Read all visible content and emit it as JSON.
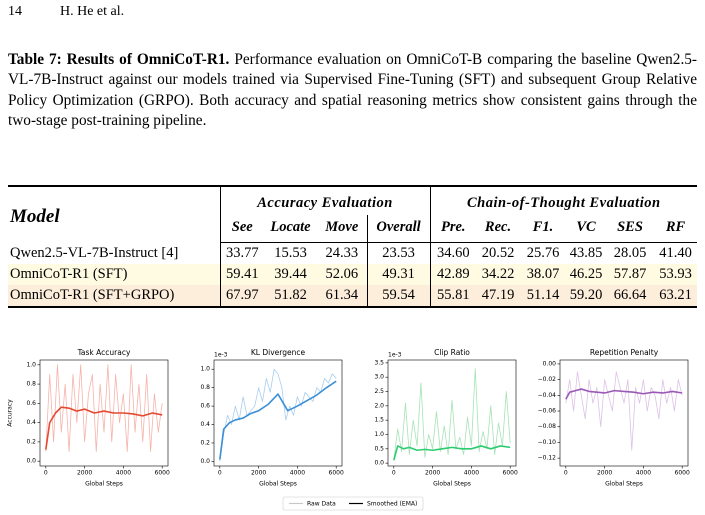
{
  "header": {
    "page_number": "14",
    "authors": "H. He et al."
  },
  "caption": {
    "label": "Table 7: Results of OmniCoT-R1.",
    "text": "Performance evaluation on OmniCoT-B comparing the baseline Qwen2.5-VL-7B-Instruct against our models trained via Supervised Fine-Tuning (SFT) and subsequent Group Relative Policy Optimization (GRPO). Both accuracy and spatial reasoning metrics show consistent gains through the two-stage post-training pipeline."
  },
  "table": {
    "model_header": "Model",
    "groups": [
      "Accuracy Evaluation",
      "Chain-of-Thought Evaluation"
    ],
    "columns": [
      "See",
      "Locate",
      "Move",
      "Overall",
      "Pre.",
      "Rec.",
      "F1.",
      "VC",
      "SES",
      "RF"
    ],
    "rows": [
      [
        "Qwen2.5-VL-7B-Instruct [4]",
        "33.77",
        "15.53",
        "24.33",
        "23.53",
        "34.60",
        "20.52",
        "25.76",
        "43.85",
        "28.05",
        "41.40"
      ],
      [
        "OmniCoT-R1 (SFT)",
        "59.41",
        "39.44",
        "52.06",
        "49.31",
        "42.89",
        "34.22",
        "38.07",
        "46.25",
        "57.87",
        "53.93"
      ],
      [
        "OmniCoT-R1 (SFT+GRPO)",
        "67.97",
        "51.82",
        "61.34",
        "59.54",
        "55.81",
        "47.19",
        "51.14",
        "59.20",
        "66.64",
        "63.21"
      ]
    ]
  },
  "figure": {
    "legend": [
      {
        "name": "Raw Data",
        "color": "#c8c8c8"
      },
      {
        "name": "Smoothed (EMA)",
        "color": "#000000"
      }
    ],
    "charts": [
      {
        "type": "line",
        "title": "Task Accuracy",
        "xlabel": "Global Steps",
        "ylabel": "Accuracy",
        "xlim": [
          -300,
          6300
        ],
        "xticks": [
          0,
          2000,
          4000,
          6000
        ],
        "ylim": [
          -0.05,
          1.05
        ],
        "yticks": [
          {
            "value": 0,
            "label": "0.0"
          },
          0.2,
          0.4,
          0.6,
          0.8,
          {
            "value": 1,
            "label": "1.0"
          }
        ],
        "series": [
          {
            "name": "Raw Data",
            "color": "#f6b3ab",
            "x": [
              0,
              200,
              400,
              600,
              800,
              1000,
              1200,
              1400,
              1600,
              1800,
              2000,
              2200,
              2400,
              2600,
              2800,
              3000,
              3200,
              3400,
              3600,
              3800,
              4000,
              4200,
              4400,
              4600,
              4800,
              5000,
              5200,
              5400,
              5600,
              5800,
              6000
            ],
            "values": [
              0.1,
              0.9,
              0.2,
              1.0,
              0.3,
              0.8,
              0.1,
              0.9,
              0.4,
              1.0,
              0.2,
              0.7,
              0.9,
              0.1,
              0.8,
              0.3,
              1.0,
              0.2,
              0.9,
              0.4,
              0.7,
              0.1,
              1.0,
              0.3,
              0.8,
              0.2,
              0.9,
              0.1,
              0.7,
              0.3,
              0.6
            ]
          },
          {
            "name": "Smoothed (EMA)",
            "color": "#e34a33",
            "x": [
              0,
              200,
              500,
              800,
              1200,
              1600,
              2000,
              2500,
              3000,
              3500,
              4000,
              4500,
              5000,
              5500,
              6000
            ],
            "values": [
              0.12,
              0.4,
              0.5,
              0.56,
              0.55,
              0.52,
              0.54,
              0.5,
              0.52,
              0.5,
              0.5,
              0.49,
              0.47,
              0.5,
              0.48
            ]
          }
        ]
      },
      {
        "type": "line",
        "title": "KL Divergence",
        "xlabel": "Global Steps",
        "offset_text": "1e-3",
        "xlim": [
          -300,
          6300
        ],
        "xticks": [
          0,
          2000,
          4000,
          6000
        ],
        "ylim": [
          -0.05,
          1.1
        ],
        "yticks": [
          {
            "value": 0,
            "label": "0.0"
          },
          0.2,
          0.4,
          0.6,
          0.8,
          {
            "value": 1,
            "label": "1.0"
          }
        ],
        "series": [
          {
            "name": "Raw Data",
            "color": "#a9cdee",
            "x": [
              0,
              200,
              400,
              600,
              800,
              1000,
              1200,
              1400,
              1600,
              1800,
              2000,
              2200,
              2400,
              2600,
              2800,
              3000,
              3200,
              3400,
              3600,
              3800,
              4000,
              4200,
              4400,
              4600,
              4800,
              5000,
              5200,
              5400,
              5600,
              5800,
              6000
            ],
            "values": [
              0.0,
              0.3,
              0.5,
              0.4,
              0.6,
              0.45,
              0.7,
              0.5,
              0.55,
              0.6,
              0.8,
              0.65,
              0.9,
              0.75,
              1.0,
              0.95,
              0.8,
              0.45,
              0.6,
              0.5,
              0.7,
              0.6,
              0.75,
              0.7,
              0.65,
              0.8,
              0.75,
              0.9,
              0.85,
              0.95,
              0.9
            ]
          },
          {
            "name": "Smoothed (EMA)",
            "color": "#3a8fd6",
            "x": [
              0,
              200,
              500,
              800,
              1200,
              1600,
              2000,
              2500,
              3000,
              3500,
              4000,
              4500,
              5000,
              5500,
              6000
            ],
            "values": [
              0.02,
              0.35,
              0.42,
              0.45,
              0.47,
              0.52,
              0.55,
              0.62,
              0.73,
              0.55,
              0.6,
              0.66,
              0.72,
              0.8,
              0.87
            ]
          }
        ]
      },
      {
        "type": "line",
        "title": "Clip Ratio",
        "xlabel": "Global Steps",
        "offset_text": "1e-3",
        "xlim": [
          -300,
          6300
        ],
        "xticks": [
          0,
          2000,
          4000,
          6000
        ],
        "ylim": [
          -0.1,
          3.6
        ],
        "yticks": [
          {
            "value": 0,
            "label": "0.0"
          },
          0.5,
          {
            "value": 1,
            "label": "1.0"
          },
          1.5,
          {
            "value": 2,
            "label": "2.0"
          },
          2.5,
          {
            "value": 3,
            "label": "3.0"
          },
          3.5
        ],
        "series": [
          {
            "name": "Raw Data",
            "color": "#a6e3b5",
            "x": [
              0,
              200,
              400,
              600,
              800,
              1000,
              1200,
              1400,
              1600,
              1800,
              2000,
              2200,
              2400,
              2600,
              2800,
              3000,
              3200,
              3400,
              3600,
              3800,
              4000,
              4200,
              4400,
              4600,
              4800,
              5000,
              5200,
              5400,
              5600,
              5800,
              6000
            ],
            "values": [
              0.1,
              1.2,
              0.4,
              2.1,
              0.3,
              1.5,
              0.6,
              2.8,
              0.2,
              1.0,
              0.5,
              1.8,
              0.4,
              1.3,
              0.3,
              2.2,
              0.5,
              0.9,
              0.3,
              1.6,
              0.6,
              3.3,
              0.4,
              1.1,
              0.5,
              2.0,
              0.3,
              1.4,
              0.6,
              2.5,
              0.7
            ]
          },
          {
            "name": "Smoothed (EMA)",
            "color": "#2ecc71",
            "x": [
              0,
              200,
              500,
              800,
              1200,
              1600,
              2000,
              2500,
              3000,
              3500,
              4000,
              4500,
              5000,
              5500,
              6000
            ],
            "values": [
              0.1,
              0.6,
              0.5,
              0.55,
              0.45,
              0.48,
              0.45,
              0.5,
              0.55,
              0.5,
              0.5,
              0.6,
              0.5,
              0.6,
              0.55
            ]
          }
        ]
      },
      {
        "type": "line",
        "title": "Repetition Penalty",
        "xlabel": "Global Steps",
        "xlim": [
          -300,
          6300
        ],
        "xticks": [
          0,
          2000,
          4000,
          6000
        ],
        "ylim": [
          -0.13,
          0.005
        ],
        "yticks": [
          {
            "value": 0,
            "label": "0.00"
          },
          {
            "value": -0.02,
            "label": "−0.02"
          },
          {
            "value": -0.04,
            "label": "−0.04"
          },
          {
            "value": -0.06,
            "label": "−0.06"
          },
          {
            "value": -0.08,
            "label": "−0.08"
          },
          {
            "value": -0.1,
            "label": "−0.10"
          },
          {
            "value": -0.12,
            "label": "−0.12"
          }
        ],
        "series": [
          {
            "name": "Raw Data",
            "color": "#dcc2e6",
            "x": [
              0,
              200,
              400,
              600,
              800,
              1000,
              1200,
              1400,
              1600,
              1800,
              2000,
              2200,
              2400,
              2600,
              2800,
              3000,
              3200,
              3400,
              3600,
              3800,
              4000,
              4200,
              4400,
              4600,
              4800,
              5000,
              5200,
              5400,
              5600,
              5800,
              6000
            ],
            "values": [
              -0.05,
              -0.02,
              -0.06,
              -0.01,
              -0.04,
              -0.07,
              -0.02,
              -0.05,
              -0.03,
              -0.08,
              -0.02,
              -0.04,
              -0.06,
              -0.01,
              -0.03,
              -0.05,
              -0.02,
              -0.11,
              -0.03,
              -0.05,
              -0.02,
              -0.06,
              -0.03,
              -0.04,
              -0.07,
              -0.02,
              -0.05,
              -0.03,
              -0.06,
              -0.02,
              -0.04
            ]
          },
          {
            "name": "Smoothed (EMA)",
            "color": "#9b59b6",
            "x": [
              0,
              200,
              500,
              800,
              1200,
              1600,
              2000,
              2500,
              3000,
              3500,
              4000,
              4500,
              5000,
              5500,
              6000
            ],
            "values": [
              -0.045,
              -0.036,
              -0.034,
              -0.032,
              -0.035,
              -0.036,
              -0.037,
              -0.034,
              -0.035,
              -0.036,
              -0.038,
              -0.036,
              -0.037,
              -0.035,
              -0.037
            ]
          }
        ]
      }
    ]
  }
}
